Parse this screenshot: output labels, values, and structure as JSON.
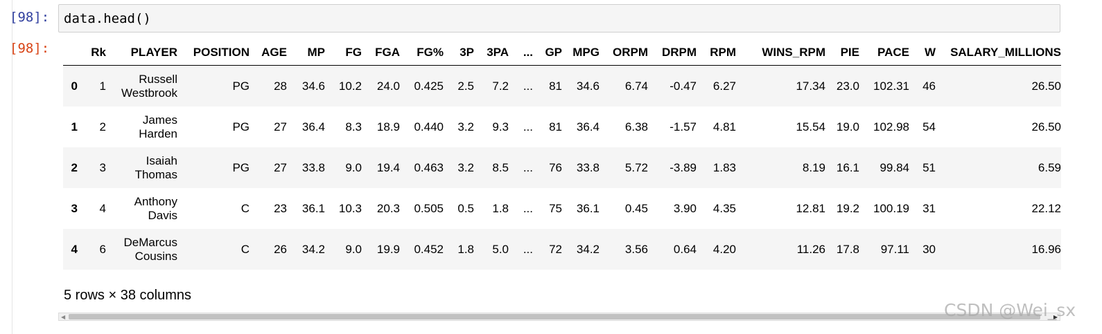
{
  "cell": {
    "in_prompt": "[98]:",
    "code": "data.head()",
    "out_prompt": "[98]:"
  },
  "table": {
    "columns": [
      "",
      "Rk",
      "PLAYER",
      "POSITION",
      "AGE",
      "MP",
      "FG",
      "FGA",
      "FG%",
      "3P",
      "3PA",
      "...",
      "GP",
      "MPG",
      "ORPM",
      "DRPM",
      "RPM",
      "WINS_RPM",
      "PIE",
      "PACE",
      "W",
      "SALARY_MILLIONS"
    ],
    "rows": [
      [
        "0",
        "1",
        "Russell Westbrook",
        "PG",
        "28",
        "34.6",
        "10.2",
        "24.0",
        "0.425",
        "2.5",
        "7.2",
        "...",
        "81",
        "34.6",
        "6.74",
        "-0.47",
        "6.27",
        "17.34",
        "23.0",
        "102.31",
        "46",
        "26.50"
      ],
      [
        "1",
        "2",
        "James Harden",
        "PG",
        "27",
        "36.4",
        "8.3",
        "18.9",
        "0.440",
        "3.2",
        "9.3",
        "...",
        "81",
        "36.4",
        "6.38",
        "-1.57",
        "4.81",
        "15.54",
        "19.0",
        "102.98",
        "54",
        "26.50"
      ],
      [
        "2",
        "3",
        "Isaiah Thomas",
        "PG",
        "27",
        "33.8",
        "9.0",
        "19.4",
        "0.463",
        "3.2",
        "8.5",
        "...",
        "76",
        "33.8",
        "5.72",
        "-3.89",
        "1.83",
        "8.19",
        "16.1",
        "99.84",
        "51",
        "6.59"
      ],
      [
        "3",
        "4",
        "Anthony Davis",
        "C",
        "23",
        "36.1",
        "10.3",
        "20.3",
        "0.505",
        "0.5",
        "1.8",
        "...",
        "75",
        "36.1",
        "0.45",
        "3.90",
        "4.35",
        "12.81",
        "19.2",
        "100.19",
        "31",
        "22.12"
      ],
      [
        "4",
        "6",
        "DeMarcus Cousins",
        "C",
        "26",
        "34.2",
        "9.0",
        "19.9",
        "0.452",
        "1.8",
        "5.0",
        "...",
        "72",
        "34.2",
        "3.56",
        "0.64",
        "4.20",
        "11.26",
        "17.8",
        "97.11",
        "30",
        "16.96"
      ]
    ],
    "summary": "5 rows × 38 columns"
  },
  "watermark": "CSDN @Wei_sx",
  "colors": {
    "in_prompt": "#303f9f",
    "out_prompt": "#d84315",
    "stripe": "#f5f5f5"
  }
}
